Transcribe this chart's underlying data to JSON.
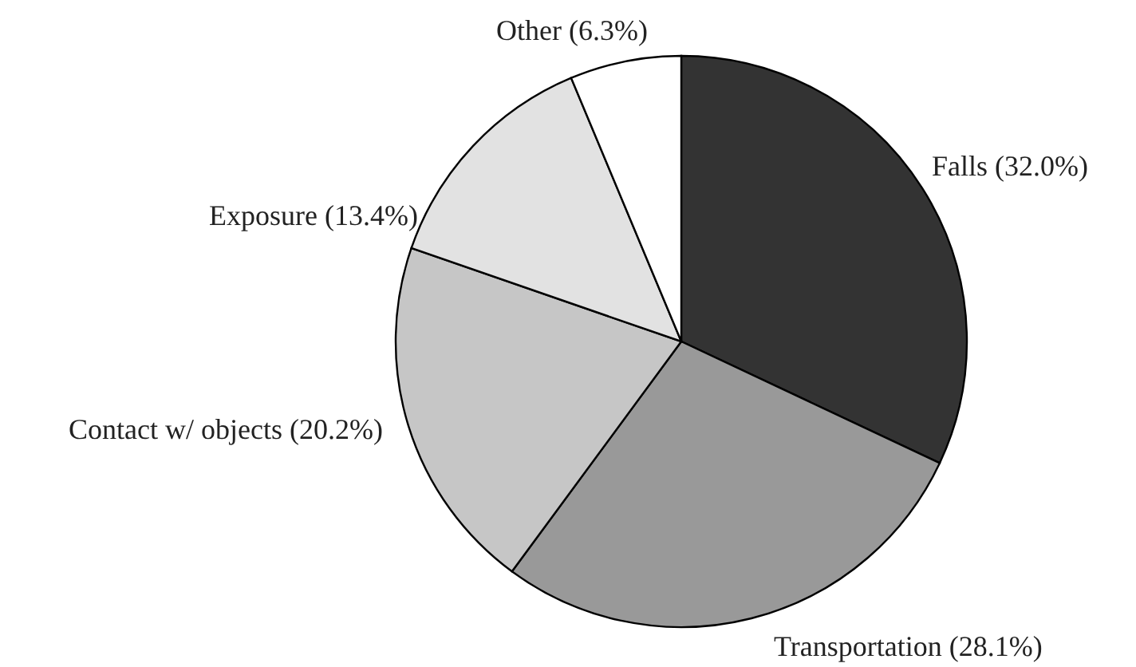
{
  "chart_data": {
    "type": "pie",
    "categories": [
      "Falls (32.0%)",
      "Transportation (28.1%)",
      "Contact w/ objects (20.2%)",
      "Exposure (13.4%)",
      "Other (6.3%)"
    ],
    "values": [
      32.0,
      28.1,
      20.2,
      13.4,
      6.3
    ],
    "colors": [
      "#333333",
      "#999999",
      "#c6c6c6",
      "#e2e2e2",
      "#ffffff"
    ]
  }
}
